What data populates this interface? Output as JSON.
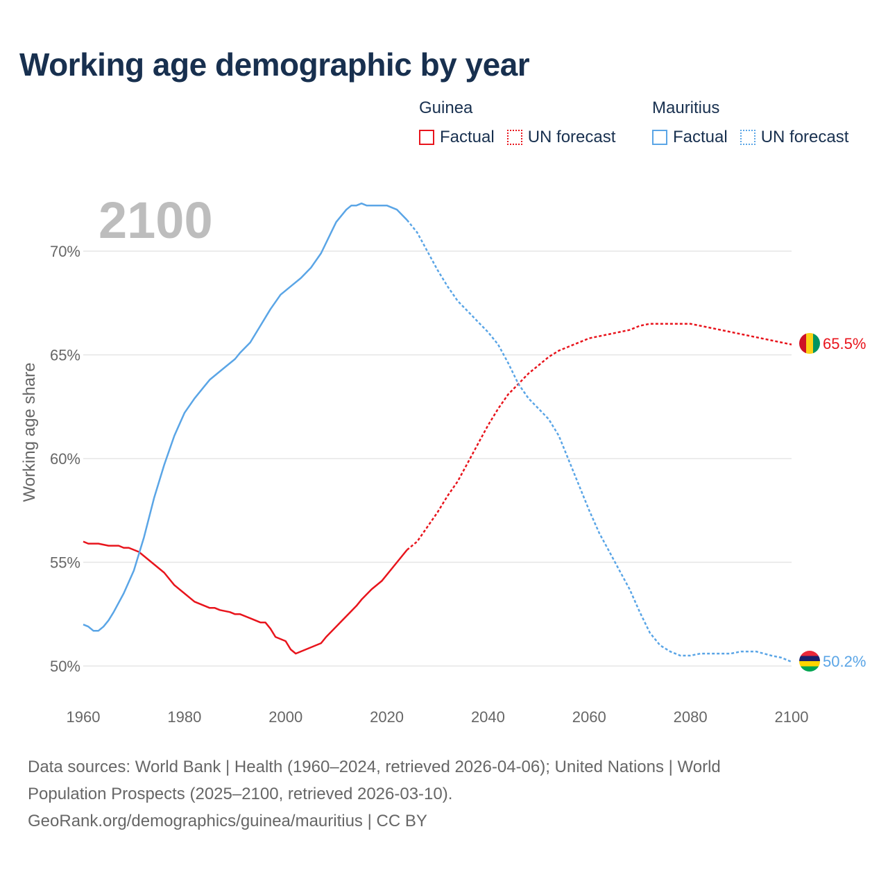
{
  "title": "Working age demographic by year",
  "legend": {
    "groups": [
      {
        "name": "Guinea",
        "factual_label": "Factual",
        "forecast_label": "UN forecast",
        "color": "#e8141c"
      },
      {
        "name": "Mauritius",
        "factual_label": "Factual",
        "forecast_label": "UN forecast",
        "color": "#5aa5e6"
      }
    ]
  },
  "year_watermark": "2100",
  "footer": {
    "line1": "Data sources: World Bank | Health (1960–2024, retrieved 2026-04-06); United Nations | World",
    "line2": "Population Prospects (2025–2100, retrieved 2026-03-10).",
    "line3": "GeoRank.org/demographics/guinea/mauritius | CC BY"
  },
  "chart_data": {
    "type": "line",
    "title": "Working age demographic by year",
    "xlabel": "",
    "ylabel": "Working age share",
    "xlim": [
      1960,
      2100
    ],
    "ylim": [
      50,
      72.5
    ],
    "xticks": [
      1960,
      1980,
      2000,
      2020,
      2040,
      2060,
      2080,
      2100
    ],
    "xtick_labels": [
      "1960",
      "1980",
      "2000",
      "2020",
      "2040",
      "2060",
      "2080",
      "2100"
    ],
    "yticks": [
      50,
      55,
      60,
      65,
      70
    ],
    "ytick_labels": [
      "50%",
      "55%",
      "60%",
      "65%",
      "70%"
    ],
    "grid": true,
    "factual_end_year": 2024,
    "series": [
      {
        "name": "Guinea",
        "color": "#e8141c",
        "end_label": "65.5%",
        "points": [
          [
            1960,
            56.0
          ],
          [
            1961,
            55.9
          ],
          [
            1963,
            55.9
          ],
          [
            1965,
            55.8
          ],
          [
            1967,
            55.8
          ],
          [
            1968,
            55.7
          ],
          [
            1969,
            55.7
          ],
          [
            1971,
            55.5
          ],
          [
            1973,
            55.1
          ],
          [
            1975,
            54.7
          ],
          [
            1976,
            54.5
          ],
          [
            1978,
            53.9
          ],
          [
            1980,
            53.5
          ],
          [
            1982,
            53.1
          ],
          [
            1984,
            52.9
          ],
          [
            1985,
            52.8
          ],
          [
            1986,
            52.8
          ],
          [
            1987,
            52.7
          ],
          [
            1989,
            52.6
          ],
          [
            1990,
            52.5
          ],
          [
            1991,
            52.5
          ],
          [
            1993,
            52.3
          ],
          [
            1995,
            52.1
          ],
          [
            1996,
            52.1
          ],
          [
            1997,
            51.8
          ],
          [
            1998,
            51.4
          ],
          [
            2000,
            51.2
          ],
          [
            2001,
            50.8
          ],
          [
            2002,
            50.6
          ],
          [
            2003,
            50.7
          ],
          [
            2005,
            50.9
          ],
          [
            2007,
            51.1
          ],
          [
            2008,
            51.4
          ],
          [
            2010,
            51.9
          ],
          [
            2012,
            52.4
          ],
          [
            2014,
            52.9
          ],
          [
            2015,
            53.2
          ],
          [
            2017,
            53.7
          ],
          [
            2019,
            54.1
          ],
          [
            2021,
            54.7
          ],
          [
            2023,
            55.3
          ],
          [
            2024,
            55.6
          ],
          [
            2026,
            56.0
          ],
          [
            2028,
            56.7
          ],
          [
            2030,
            57.4
          ],
          [
            2032,
            58.2
          ],
          [
            2034,
            58.9
          ],
          [
            2036,
            59.8
          ],
          [
            2038,
            60.7
          ],
          [
            2040,
            61.6
          ],
          [
            2042,
            62.4
          ],
          [
            2044,
            63.1
          ],
          [
            2046,
            63.6
          ],
          [
            2048,
            64.1
          ],
          [
            2050,
            64.5
          ],
          [
            2052,
            64.9
          ],
          [
            2054,
            65.2
          ],
          [
            2056,
            65.4
          ],
          [
            2058,
            65.6
          ],
          [
            2060,
            65.8
          ],
          [
            2062,
            65.9
          ],
          [
            2064,
            66.0
          ],
          [
            2066,
            66.1
          ],
          [
            2068,
            66.2
          ],
          [
            2070,
            66.4
          ],
          [
            2072,
            66.5
          ],
          [
            2075,
            66.5
          ],
          [
            2080,
            66.5
          ],
          [
            2084,
            66.3
          ],
          [
            2088,
            66.1
          ],
          [
            2092,
            65.9
          ],
          [
            2096,
            65.7
          ],
          [
            2098,
            65.6
          ],
          [
            2100,
            65.5
          ]
        ]
      },
      {
        "name": "Mauritius",
        "color": "#5aa5e6",
        "end_label": "50.2%",
        "points": [
          [
            1960,
            52.0
          ],
          [
            1961,
            51.9
          ],
          [
            1962,
            51.7
          ],
          [
            1963,
            51.7
          ],
          [
            1964,
            51.9
          ],
          [
            1965,
            52.2
          ],
          [
            1966,
            52.6
          ],
          [
            1968,
            53.5
          ],
          [
            1970,
            54.6
          ],
          [
            1972,
            56.2
          ],
          [
            1974,
            58.1
          ],
          [
            1976,
            59.7
          ],
          [
            1978,
            61.1
          ],
          [
            1980,
            62.2
          ],
          [
            1982,
            62.9
          ],
          [
            1984,
            63.5
          ],
          [
            1985,
            63.8
          ],
          [
            1986,
            64.0
          ],
          [
            1988,
            64.4
          ],
          [
            1990,
            64.8
          ],
          [
            1991,
            65.1
          ],
          [
            1993,
            65.6
          ],
          [
            1995,
            66.4
          ],
          [
            1997,
            67.2
          ],
          [
            1999,
            67.9
          ],
          [
            2001,
            68.3
          ],
          [
            2003,
            68.7
          ],
          [
            2005,
            69.2
          ],
          [
            2007,
            69.9
          ],
          [
            2009,
            70.9
          ],
          [
            2010,
            71.4
          ],
          [
            2012,
            72.0
          ],
          [
            2013,
            72.2
          ],
          [
            2014,
            72.2
          ],
          [
            2015,
            72.3
          ],
          [
            2016,
            72.2
          ],
          [
            2018,
            72.2
          ],
          [
            2020,
            72.2
          ],
          [
            2021,
            72.1
          ],
          [
            2022,
            72.0
          ],
          [
            2024,
            71.5
          ],
          [
            2026,
            70.9
          ],
          [
            2028,
            70.0
          ],
          [
            2030,
            69.1
          ],
          [
            2032,
            68.3
          ],
          [
            2034,
            67.6
          ],
          [
            2036,
            67.1
          ],
          [
            2038,
            66.6
          ],
          [
            2040,
            66.1
          ],
          [
            2042,
            65.5
          ],
          [
            2044,
            64.6
          ],
          [
            2046,
            63.6
          ],
          [
            2048,
            62.9
          ],
          [
            2050,
            62.4
          ],
          [
            2052,
            61.9
          ],
          [
            2054,
            61.1
          ],
          [
            2056,
            59.9
          ],
          [
            2058,
            58.7
          ],
          [
            2060,
            57.5
          ],
          [
            2062,
            56.4
          ],
          [
            2064,
            55.5
          ],
          [
            2066,
            54.6
          ],
          [
            2068,
            53.7
          ],
          [
            2070,
            52.6
          ],
          [
            2072,
            51.6
          ],
          [
            2074,
            51.0
          ],
          [
            2076,
            50.7
          ],
          [
            2078,
            50.5
          ],
          [
            2080,
            50.5
          ],
          [
            2082,
            50.6
          ],
          [
            2085,
            50.6
          ],
          [
            2088,
            50.6
          ],
          [
            2090,
            50.7
          ],
          [
            2093,
            50.7
          ],
          [
            2096,
            50.5
          ],
          [
            2098,
            50.4
          ],
          [
            2100,
            50.2
          ]
        ]
      }
    ]
  }
}
